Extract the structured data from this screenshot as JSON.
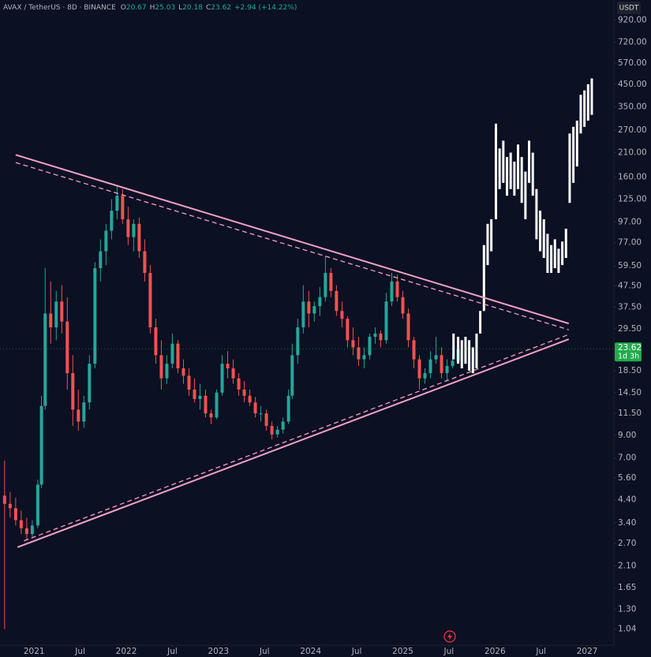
{
  "header": {
    "symbol": "AVAX / TetherUS · 8D · BINANCE",
    "ohlc": [
      {
        "label": "O",
        "value": "20.67"
      },
      {
        "label": "H",
        "value": "25.03"
      },
      {
        "label": "L",
        "value": "20.18"
      },
      {
        "label": "C",
        "value": "23.62"
      }
    ],
    "change": "+2.94 (+14.22%)"
  },
  "currency": "USDT",
  "chart_data": {
    "type": "candlestick",
    "log_scale": true,
    "grid": false,
    "xlim": [
      2020.63,
      2027.29
    ],
    "ylim": [
      0.87,
      1150
    ],
    "xticks": [
      2021,
      {
        "value": 2021.5,
        "label": "Jul"
      },
      2022,
      {
        "value": 2022.5,
        "label": "Jul"
      },
      2023,
      {
        "value": 2023.5,
        "label": "Jul"
      },
      2024,
      {
        "value": 2024.5,
        "label": "Jul"
      },
      2025,
      {
        "value": 2025.5,
        "label": "Jul"
      },
      2026,
      {
        "value": 2026.5,
        "label": "Jul"
      },
      2027
    ],
    "yticks": [
      {
        "value": 920,
        "label": "920.00"
      },
      {
        "value": 720,
        "label": "720.00"
      },
      {
        "value": 570,
        "label": "570.00"
      },
      {
        "value": 450,
        "label": "450.00"
      },
      {
        "value": 350,
        "label": "350.00"
      },
      {
        "value": 270,
        "label": "270.00"
      },
      {
        "value": 210,
        "label": "210.00"
      },
      {
        "value": 160,
        "label": "160.00"
      },
      {
        "value": 125,
        "label": "125.00"
      },
      {
        "value": 97,
        "label": "97.00"
      },
      {
        "value": 77,
        "label": "77.00"
      },
      {
        "value": 59.5,
        "label": "59.50"
      },
      {
        "value": 47.5,
        "label": "47.50"
      },
      {
        "value": 37.5,
        "label": "37.50"
      },
      {
        "value": 29.5,
        "label": "29.50"
      },
      {
        "value": 18.5,
        "label": "18.50"
      },
      {
        "value": 14.5,
        "label": "14.50"
      },
      {
        "value": 11.5,
        "label": "11.50"
      },
      {
        "value": 9,
        "label": "9.00"
      },
      {
        "value": 7,
        "label": "7.00"
      },
      {
        "value": 5.6,
        "label": "5.60"
      },
      {
        "value": 4.4,
        "label": "4.40"
      },
      {
        "value": 3.4,
        "label": "3.40"
      },
      {
        "value": 2.7,
        "label": "2.70"
      },
      {
        "value": 2.1,
        "label": "2.10"
      },
      1.65,
      {
        "value": 1.3,
        "label": "1.30"
      },
      1.04
    ],
    "candles": {
      "up_color": "#26a69a",
      "down_color": "#ef5350",
      "x": [
        2020.68,
        2020.74,
        2020.8,
        2020.86,
        2020.92,
        2020.98,
        2021.04,
        2021.08,
        2021.12,
        2021.18,
        2021.24,
        2021.3,
        2021.36,
        2021.42,
        2021.48,
        2021.54,
        2021.6,
        2021.66,
        2021.72,
        2021.78,
        2021.84,
        2021.9,
        2021.96,
        2022.02,
        2022.08,
        2022.14,
        2022.2,
        2022.26,
        2022.32,
        2022.38,
        2022.44,
        2022.5,
        2022.56,
        2022.62,
        2022.68,
        2022.74,
        2022.8,
        2022.86,
        2022.92,
        2022.98,
        2023.04,
        2023.1,
        2023.16,
        2023.22,
        2023.28,
        2023.34,
        2023.4,
        2023.46,
        2023.52,
        2023.58,
        2023.64,
        2023.7,
        2023.76,
        2023.8,
        2023.86,
        2023.92,
        2023.98,
        2024.04,
        2024.1,
        2024.16,
        2024.22,
        2024.28,
        2024.34,
        2024.4,
        2024.46,
        2024.52,
        2024.58,
        2024.64,
        2024.7,
        2024.76,
        2024.82,
        2024.88,
        2024.94,
        2025.0,
        2025.06,
        2025.12,
        2025.18,
        2025.24,
        2025.3,
        2025.36,
        2025.42,
        2025.48,
        2025.54,
        2025.6
      ],
      "open": [
        4.6,
        4.2,
        4.0,
        3.5,
        3.2,
        3.0,
        3.3,
        5.2,
        12.5,
        35,
        30,
        40,
        32,
        18,
        12,
        10.5,
        13,
        20,
        58,
        70,
        88,
        110,
        130,
        100,
        82,
        95,
        70,
        55,
        30,
        22,
        17,
        20,
        25,
        19,
        17.5,
        15,
        13.5,
        14,
        11.5,
        11,
        14.5,
        20,
        19,
        17,
        15,
        14,
        13,
        11.5,
        11.5,
        10,
        9.1,
        9.6,
        10.5,
        14,
        22,
        30,
        40,
        35,
        38,
        42,
        55,
        45,
        36,
        33,
        26,
        24,
        21,
        22,
        27,
        28,
        26,
        40,
        50,
        42,
        35,
        26,
        21,
        17,
        18,
        21,
        22,
        18,
        19.5,
        20.67
      ],
      "high": [
        6.8,
        4.8,
        4.5,
        3.9,
        3.6,
        3.5,
        5.5,
        14,
        58,
        50,
        45,
        48,
        42,
        22,
        15,
        14,
        22,
        62,
        80,
        95,
        125,
        146,
        140,
        115,
        100,
        102,
        80,
        60,
        33,
        26,
        22,
        28,
        26,
        21,
        19,
        17,
        16,
        15,
        12,
        15,
        22,
        23,
        21,
        18,
        16.5,
        15,
        13.8,
        12.5,
        12,
        10.5,
        10,
        11,
        15,
        25,
        33,
        48,
        45,
        40,
        47,
        66,
        58,
        48,
        40,
        34,
        30,
        27,
        24,
        28,
        30,
        29,
        44,
        55,
        54,
        45,
        37,
        27,
        22,
        19,
        23,
        27,
        24,
        21,
        22,
        25.03
      ],
      "low": [
        1.04,
        3.6,
        3.3,
        3.0,
        2.8,
        2.9,
        3.2,
        5.0,
        12,
        25,
        26,
        28,
        15,
        10,
        9.5,
        9.8,
        12,
        19,
        50,
        60,
        80,
        100,
        95,
        75,
        70,
        65,
        50,
        28,
        20,
        15,
        16,
        19,
        18,
        16,
        14,
        13,
        12,
        11,
        10.2,
        10.8,
        14,
        17,
        16,
        14,
        13,
        12.5,
        11,
        10.5,
        9.5,
        8.6,
        8.8,
        9.2,
        10.2,
        13.5,
        20,
        28,
        30,
        32,
        34,
        40,
        42,
        34,
        30,
        24,
        22,
        19.5,
        19,
        21,
        25,
        24,
        25,
        38,
        40,
        33,
        24,
        19,
        15,
        16,
        17,
        20,
        17,
        16.5,
        19,
        20.18
      ],
      "close": [
        4.2,
        4.0,
        3.5,
        3.2,
        3.0,
        3.3,
        5.2,
        12.5,
        35,
        30,
        40,
        32,
        18,
        12,
        10.5,
        13,
        20,
        58,
        70,
        88,
        110,
        130,
        100,
        82,
        95,
        70,
        55,
        30,
        22,
        17,
        20,
        25,
        19,
        17.5,
        15,
        13.5,
        14,
        11.5,
        11,
        14.5,
        20,
        19,
        17,
        15,
        14,
        13,
        11.5,
        11.5,
        10,
        9.1,
        9.6,
        10.5,
        14,
        22,
        30,
        40,
        35,
        38,
        42,
        55,
        45,
        36,
        33,
        26,
        24,
        21,
        22,
        27,
        28,
        26,
        40,
        50,
        42,
        35,
        26,
        21,
        17,
        18,
        21,
        22,
        18,
        19.5,
        20.67,
        23.62
      ]
    },
    "projection": {
      "color": "#ffffff",
      "x": [
        2025.55,
        2025.6,
        2025.64,
        2025.68,
        2025.72,
        2025.76,
        2025.8,
        2025.84,
        2025.88,
        2025.92,
        2025.96,
        2026.01,
        2026.05,
        2026.09,
        2026.13,
        2026.17,
        2026.21,
        2026.25,
        2026.29,
        2026.33,
        2026.37,
        2026.41,
        2026.45,
        2026.49,
        2026.53,
        2026.57,
        2026.61,
        2026.65,
        2026.69,
        2026.73,
        2026.77,
        2026.81,
        2026.85,
        2026.89,
        2026.93,
        2026.97,
        2027.01,
        2027.05
      ],
      "low": [
        21,
        20,
        19,
        20,
        18.5,
        18,
        19,
        28,
        36,
        60,
        70,
        100,
        140,
        150,
        130,
        140,
        130,
        140,
        120,
        100,
        150,
        130,
        80,
        70,
        65,
        55,
        55,
        58,
        55,
        60,
        65,
        120,
        150,
        180,
        260,
        280,
        300,
        320
      ],
      "high": [
        28,
        27,
        26,
        27,
        26,
        24,
        28,
        36,
        75,
        95,
        100,
        290,
        220,
        240,
        200,
        210,
        190,
        230,
        200,
        170,
        240,
        210,
        140,
        110,
        100,
        85,
        75,
        80,
        72,
        78,
        90,
        260,
        280,
        300,
        400,
        420,
        450,
        480
      ]
    },
    "trendlines": [
      {
        "color": "#f2a0c8",
        "dashed": false,
        "x": [
          2020.8,
          2026.8
        ],
        "y": [
          205,
          31.3
        ]
      },
      {
        "color": "#f2a0c8",
        "dashed": true,
        "x": [
          2020.8,
          2026.8
        ],
        "y": [
          188,
          29.2
        ]
      },
      {
        "color": "#f2a0c8",
        "dashed": false,
        "x": [
          2020.82,
          2026.8
        ],
        "y": [
          2.59,
          26.3
        ]
      },
      {
        "color": "#f2a0c8",
        "dashed": true,
        "x": [
          2020.89,
          2026.8
        ],
        "y": [
          2.78,
          27.7
        ]
      }
    ],
    "last_price": {
      "value": 23.62,
      "countdown": "1d 3h",
      "color": "#22ab4c"
    }
  }
}
